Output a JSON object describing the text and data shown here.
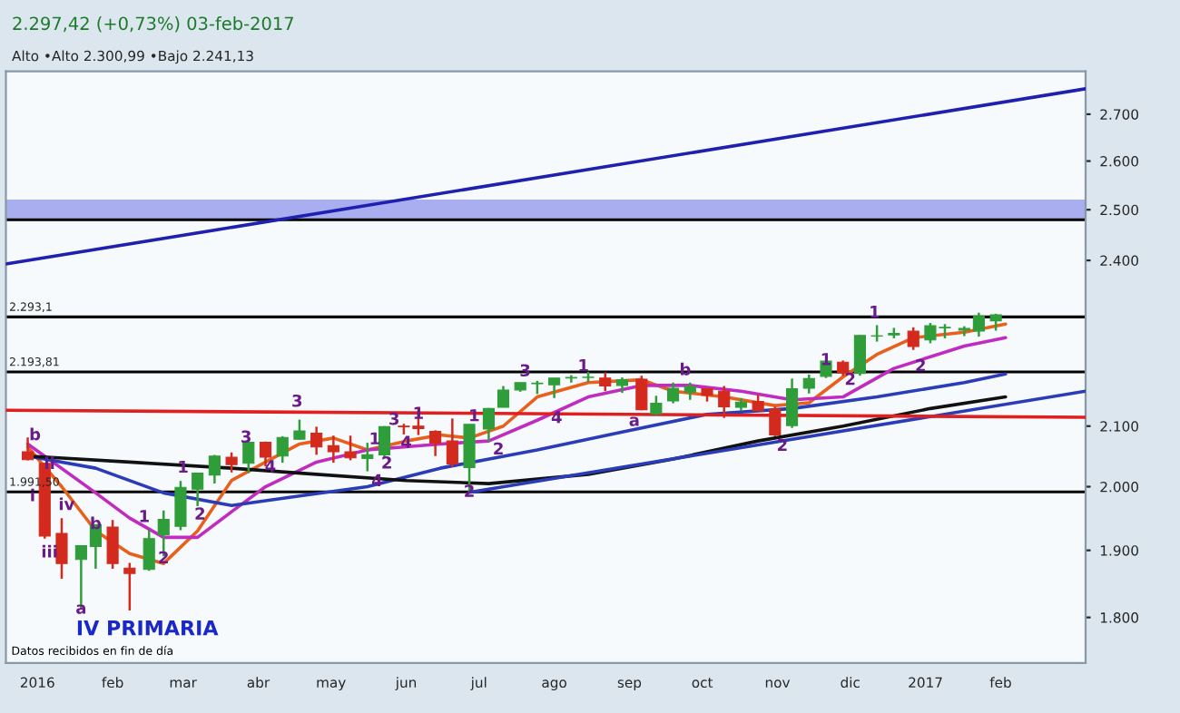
{
  "chart_data": {
    "type": "candlestick",
    "title": "2.297,42 (+0,73%) 03-feb-2017",
    "subtitle": "Alto •Alto 2.300,99 •Bajo 2.241,13",
    "x": [
      "2015-12-28",
      "2016-01-04",
      "2016-01-11",
      "2016-01-19",
      "2016-01-25",
      "2016-02-01",
      "2016-02-08",
      "2016-02-16",
      "2016-02-22",
      "2016-02-29",
      "2016-03-07",
      "2016-03-14",
      "2016-03-21",
      "2016-03-28",
      "2016-04-04",
      "2016-04-11",
      "2016-04-18",
      "2016-04-25",
      "2016-05-02",
      "2016-05-09",
      "2016-05-16",
      "2016-05-23",
      "2016-05-31",
      "2016-06-06",
      "2016-06-13",
      "2016-06-20",
      "2016-06-27",
      "2016-07-05",
      "2016-07-11",
      "2016-07-18",
      "2016-07-25",
      "2016-08-01",
      "2016-08-08",
      "2016-08-15",
      "2016-08-22",
      "2016-08-29",
      "2016-09-06",
      "2016-09-12",
      "2016-09-19",
      "2016-09-26",
      "2016-10-03",
      "2016-10-10",
      "2016-10-17",
      "2016-10-24",
      "2016-10-31",
      "2016-11-07",
      "2016-11-14",
      "2016-11-21",
      "2016-11-28",
      "2016-12-05",
      "2016-12-12",
      "2016-12-19",
      "2016-12-27",
      "2017-01-03",
      "2017-01-09",
      "2017-01-17",
      "2017-01-23",
      "2017-01-30"
    ],
    "ohlc": [
      [
        2057,
        2081,
        2043,
        2044
      ],
      [
        2038,
        2038,
        1918,
        1922
      ],
      [
        1926,
        1950,
        1857,
        1880
      ],
      [
        1886,
        1908,
        1812,
        1907
      ],
      [
        1906,
        1940,
        1872,
        1940
      ],
      [
        1936,
        1947,
        1872,
        1880
      ],
      [
        1873,
        1881,
        1810,
        1865
      ],
      [
        1871,
        1931,
        1869,
        1918
      ],
      [
        1924,
        1962,
        1891,
        1948
      ],
      [
        1937,
        2009,
        1931,
        1999
      ],
      [
        1996,
        2022,
        1969,
        2022
      ],
      [
        2019,
        2052,
        2005,
        2050
      ],
      [
        2048,
        2056,
        2023,
        2036
      ],
      [
        2038,
        2075,
        2022,
        2073
      ],
      [
        2073,
        2074,
        2033,
        2048
      ],
      [
        2050,
        2083,
        2039,
        2081
      ],
      [
        2078,
        2111,
        2077,
        2092
      ],
      [
        2088,
        2099,
        2052,
        2065
      ],
      [
        2067,
        2084,
        2039,
        2057
      ],
      [
        2057,
        2084,
        2043,
        2047
      ],
      [
        2046,
        2072,
        2025,
        2052
      ],
      [
        2052,
        2100,
        2047,
        2099
      ],
      [
        2100,
        2104,
        2086,
        2099
      ],
      [
        2100,
        2120,
        2085,
        2096
      ],
      [
        2091,
        2093,
        2050,
        2071
      ],
      [
        2075,
        2113,
        2032,
        2037
      ],
      [
        2031,
        2103,
        1991,
        2103
      ],
      [
        2095,
        2131,
        2074,
        2130
      ],
      [
        2132,
        2169,
        2132,
        2162
      ],
      [
        2162,
        2175,
        2159,
        2175
      ],
      [
        2173,
        2178,
        2155,
        2174
      ],
      [
        2171,
        2183,
        2148,
        2183
      ],
      [
        2183,
        2188,
        2175,
        2184
      ],
      [
        2184,
        2194,
        2176,
        2184
      ],
      [
        2183,
        2193,
        2160,
        2169
      ],
      [
        2170,
        2184,
        2157,
        2180
      ],
      [
        2181,
        2187,
        2127,
        2128
      ],
      [
        2121,
        2152,
        2119,
        2139
      ],
      [
        2143,
        2175,
        2139,
        2165
      ],
      [
        2158,
        2175,
        2145,
        2168
      ],
      [
        2164,
        2165,
        2142,
        2153
      ],
      [
        2160,
        2169,
        2114,
        2133
      ],
      [
        2132,
        2148,
        2126,
        2141
      ],
      [
        2142,
        2154,
        2126,
        2126
      ],
      [
        2129,
        2133,
        2083,
        2085
      ],
      [
        2101,
        2182,
        2097,
        2164
      ],
      [
        2165,
        2189,
        2156,
        2182
      ],
      [
        2186,
        2214,
        2183,
        2213
      ],
      [
        2211,
        2214,
        2187,
        2192
      ],
      [
        2191,
        2260,
        2187,
        2259
      ],
      [
        2258,
        2278,
        2248,
        2258
      ],
      [
        2260,
        2273,
        2254,
        2263
      ],
      [
        2267,
        2274,
        2233,
        2239
      ],
      [
        2251,
        2282,
        2245,
        2277
      ],
      [
        2273,
        2280,
        2254,
        2274
      ],
      [
        2269,
        2276,
        2258,
        2272
      ],
      [
        2267,
        2301,
        2257,
        2295
      ],
      [
        2286,
        2299,
        2268,
        2297
      ]
    ],
    "colors": [
      "#d42a1e",
      "#d42a1e",
      "#d42a1e",
      "#2f9e3a",
      "#2f9e3a",
      "#d42a1e",
      "#d42a1e",
      "#2f9e3a",
      "#2f9e3a",
      "#2f9e3a",
      "#2f9e3a",
      "#2f9e3a",
      "#d42a1e",
      "#2f9e3a",
      "#d42a1e",
      "#2f9e3a",
      "#2f9e3a",
      "#d42a1e",
      "#d42a1e",
      "#d42a1e",
      "#2f9e3a",
      "#2f9e3a",
      "#d42a1e",
      "#d42a1e",
      "#d42a1e",
      "#d42a1e",
      "#2f9e3a",
      "#2f9e3a",
      "#2f9e3a",
      "#2f9e3a",
      "#2f9e3a",
      "#2f9e3a",
      "#2f9e3a",
      "#2f9e3a",
      "#d42a1e",
      "#2f9e3a",
      "#d42a1e",
      "#2f9e3a",
      "#2f9e3a",
      "#2f9e3a",
      "#d42a1e",
      "#d42a1e",
      "#2f9e3a",
      "#d42a1e",
      "#d42a1e",
      "#2f9e3a",
      "#2f9e3a",
      "#2f9e3a",
      "#d42a1e",
      "#2f9e3a",
      "#2f9e3a",
      "#2f9e3a",
      "#d42a1e",
      "#2f9e3a",
      "#2f9e3a",
      "#2f9e3a",
      "#2f9e3a",
      "#2f9e3a"
    ],
    "series": [
      {
        "type": "line",
        "color": "#e8601c",
        "x": [
          "2015-12-28",
          "2016-01-11",
          "2016-01-25",
          "2016-02-08",
          "2016-02-22",
          "2016-03-07",
          "2016-03-21",
          "2016-04-04",
          "2016-04-18",
          "2016-05-02",
          "2016-05-16",
          "2016-06-01",
          "2016-06-15",
          "2016-06-27",
          "2016-07-11",
          "2016-07-25",
          "2016-08-15",
          "2016-09-06",
          "2016-09-19",
          "2016-10-10",
          "2016-10-31",
          "2016-11-14",
          "2016-11-28",
          "2016-12-12",
          "2016-12-27",
          "2017-01-17",
          "2017-02-03"
        ],
        "values": [
          2065,
          2000,
          1930,
          1895,
          1880,
          1930,
          2010,
          2040,
          2070,
          2080,
          2060,
          2075,
          2085,
          2080,
          2100,
          2150,
          2175,
          2180,
          2160,
          2150,
          2135,
          2140,
          2185,
          2225,
          2255,
          2265,
          2280
        ]
      },
      {
        "type": "line",
        "color": "#c02cc0",
        "x": [
          "2015-12-28",
          "2016-01-25",
          "2016-02-08",
          "2016-02-22",
          "2016-03-07",
          "2016-03-21",
          "2016-04-04",
          "2016-04-25",
          "2016-05-16",
          "2016-06-15",
          "2016-07-05",
          "2016-07-25",
          "2016-08-15",
          "2016-09-06",
          "2016-09-26",
          "2016-10-17",
          "2016-11-07",
          "2016-11-28",
          "2016-12-19",
          "2017-01-17",
          "2017-02-03"
        ],
        "values": [
          2070,
          1990,
          1950,
          1920,
          1920,
          1960,
          2000,
          2040,
          2060,
          2070,
          2075,
          2110,
          2150,
          2170,
          2170,
          2160,
          2145,
          2150,
          2200,
          2240,
          2255
        ]
      },
      {
        "type": "line",
        "color": "#2a3cb8",
        "x": [
          "2015-12-28",
          "2016-01-25",
          "2016-02-22",
          "2016-03-21",
          "2016-04-18",
          "2016-05-16",
          "2016-06-15",
          "2016-07-25",
          "2016-08-29",
          "2016-10-03",
          "2016-11-07",
          "2016-12-12",
          "2017-01-17",
          "2017-02-03"
        ],
        "values": [
          2050,
          2030,
          1990,
          1970,
          1985,
          2000,
          2030,
          2060,
          2090,
          2120,
          2130,
          2150,
          2175,
          2190
        ]
      },
      {
        "type": "line",
        "color": "#111111",
        "x": [
          "2015-12-28",
          "2016-02-08",
          "2016-03-21",
          "2016-04-25",
          "2016-06-01",
          "2016-07-05",
          "2016-08-15",
          "2016-09-19",
          "2016-10-24",
          "2016-11-28",
          "2017-01-03",
          "2017-02-03"
        ],
        "values": [
          2050,
          2040,
          2030,
          2020,
          2010,
          2005,
          2020,
          2045,
          2075,
          2100,
          2130,
          2150
        ]
      },
      {
        "type": "line",
        "color": "#2020b0",
        "x": [
          "2015-12-19",
          "2017-03-08"
        ],
        "values": [
          2393,
          2756
        ]
      },
      {
        "type": "line",
        "color": "#2a3cb8",
        "x": [
          "2016-06-27",
          "2017-03-08"
        ],
        "values": [
          1991,
          2160
        ]
      },
      {
        "type": "line",
        "color": "#e02020",
        "x": [
          "2015-12-19",
          "2017-03-08"
        ],
        "values": [
          2127,
          2115
        ]
      }
    ],
    "ref_lines": [
      {
        "axis": "y",
        "value": 2293.1,
        "label": "2.293,1",
        "color": "#000000"
      },
      {
        "axis": "y",
        "value": 2193.81,
        "label": "2.193,81",
        "color": "#000000"
      },
      {
        "axis": "y",
        "value": 1991.5,
        "label": "1.991,50",
        "color": "#000000"
      },
      {
        "axis": "y",
        "value": 2480,
        "color": "#000000"
      }
    ],
    "bands": [
      {
        "axis": "y",
        "from": 2480,
        "to": 2518,
        "color": "#a9aef0"
      }
    ],
    "annotations": [
      {
        "text": "b",
        "x": "2015-12-31",
        "y": 2084
      },
      {
        "text": "i",
        "x": "2015-12-30",
        "y": 1984
      },
      {
        "text": "ii",
        "x": "2016-01-06",
        "y": 2036
      },
      {
        "text": "iii",
        "x": "2016-01-06",
        "y": 1896
      },
      {
        "text": "iv",
        "x": "2016-01-13",
        "y": 1970
      },
      {
        "text": "a",
        "x": "2016-01-19",
        "y": 1812
      },
      {
        "text": "b",
        "x": "2016-01-25",
        "y": 1940
      },
      {
        "text": "1",
        "x": "2016-02-14",
        "y": 1951
      },
      {
        "text": "2",
        "x": "2016-02-22",
        "y": 1887
      },
      "IV PRIMARIA",
      {
        "text": "1",
        "x": "2016-03-01",
        "y": 2030
      },
      {
        "text": "2",
        "x": "2016-03-08",
        "y": 1955
      },
      {
        "text": "3",
        "x": "2016-03-27",
        "y": 2080
      },
      {
        "text": "4",
        "x": "2016-04-06",
        "y": 2031
      },
      {
        "text": "3",
        "x": "2016-04-17",
        "y": 2141
      },
      {
        "text": "1",
        "x": "2016-05-19",
        "y": 2077
      },
      {
        "text": "2",
        "x": "2016-05-24",
        "y": 2037
      },
      {
        "text": "3",
        "x": "2016-05-27",
        "y": 2110
      },
      {
        "text": "4",
        "x": "2016-06-01",
        "y": 2071
      },
      {
        "text": "4",
        "x": "2016-05-20",
        "y": 2008
      },
      {
        "text": "1",
        "x": "2016-06-06",
        "y": 2120
      },
      {
        "text": "2",
        "x": "2016-06-27",
        "y": 1991
      },
      {
        "text": "1",
        "x": "2016-06-29",
        "y": 2116
      },
      {
        "text": "2",
        "x": "2016-07-09",
        "y": 2060
      },
      {
        "text": "3",
        "x": "2016-07-20",
        "y": 2194
      },
      {
        "text": "4",
        "x": "2016-08-02",
        "y": 2113
      },
      {
        "text": "1",
        "x": "2016-08-13",
        "y": 2203
      },
      {
        "text": "a",
        "x": "2016-09-03",
        "y": 2108
      },
      {
        "text": "b",
        "x": "2016-09-24",
        "y": 2196
      },
      {
        "text": "2",
        "x": "2016-11-03",
        "y": 2066
      },
      {
        "text": "1",
        "x": "2016-11-21",
        "y": 2214
      },
      {
        "text": "2",
        "x": "2016-12-01",
        "y": 2179
      },
      {
        "text": "1",
        "x": "2016-12-11",
        "y": 2300
      },
      {
        "text": "2",
        "x": "2016-12-30",
        "y": 2203
      },
      "Datos recibidos en fin de día"
    ],
    "log": true,
    "xlim": [
      "2015-12-19",
      "2017-03-08"
    ],
    "xticks": [
      {
        "value": "2016-01-01",
        "label": "2016"
      },
      {
        "value": "2016-02-01",
        "label": "feb"
      },
      {
        "value": "2016-03-01",
        "label": "mar"
      },
      {
        "value": "2016-04-01",
        "label": "abr"
      },
      {
        "value": "2016-05-01",
        "label": "may"
      },
      {
        "value": "2016-06-01",
        "label": "jun"
      },
      {
        "value": "2016-07-01",
        "label": "jul"
      },
      {
        "value": "2016-08-01",
        "label": "ago"
      },
      {
        "value": "2016-09-01",
        "label": "sep"
      },
      {
        "value": "2016-10-01",
        "label": "oct"
      },
      {
        "value": "2016-11-01",
        "label": "nov"
      },
      {
        "value": "2016-12-01",
        "label": "dic"
      },
      {
        "value": "2017-01-01",
        "label": "2017"
      },
      {
        "value": "2017-02-01",
        "label": "feb"
      }
    ],
    "ylim": [
      1735,
      2795
    ],
    "yticks": [
      {
        "value": 1800,
        "label": "1.800"
      },
      {
        "value": 1900,
        "label": "1.900"
      },
      {
        "value": 2000,
        "label": "2.000"
      },
      {
        "value": 2100,
        "label": "2.100"
      },
      {
        "value": 2400,
        "label": "2.400"
      },
      {
        "value": 2500,
        "label": "2.500"
      },
      {
        "value": 2600,
        "label": "2.600"
      },
      {
        "value": 2700,
        "label": "2.700"
      }
    ],
    "grid": false,
    "legend": false
  }
}
